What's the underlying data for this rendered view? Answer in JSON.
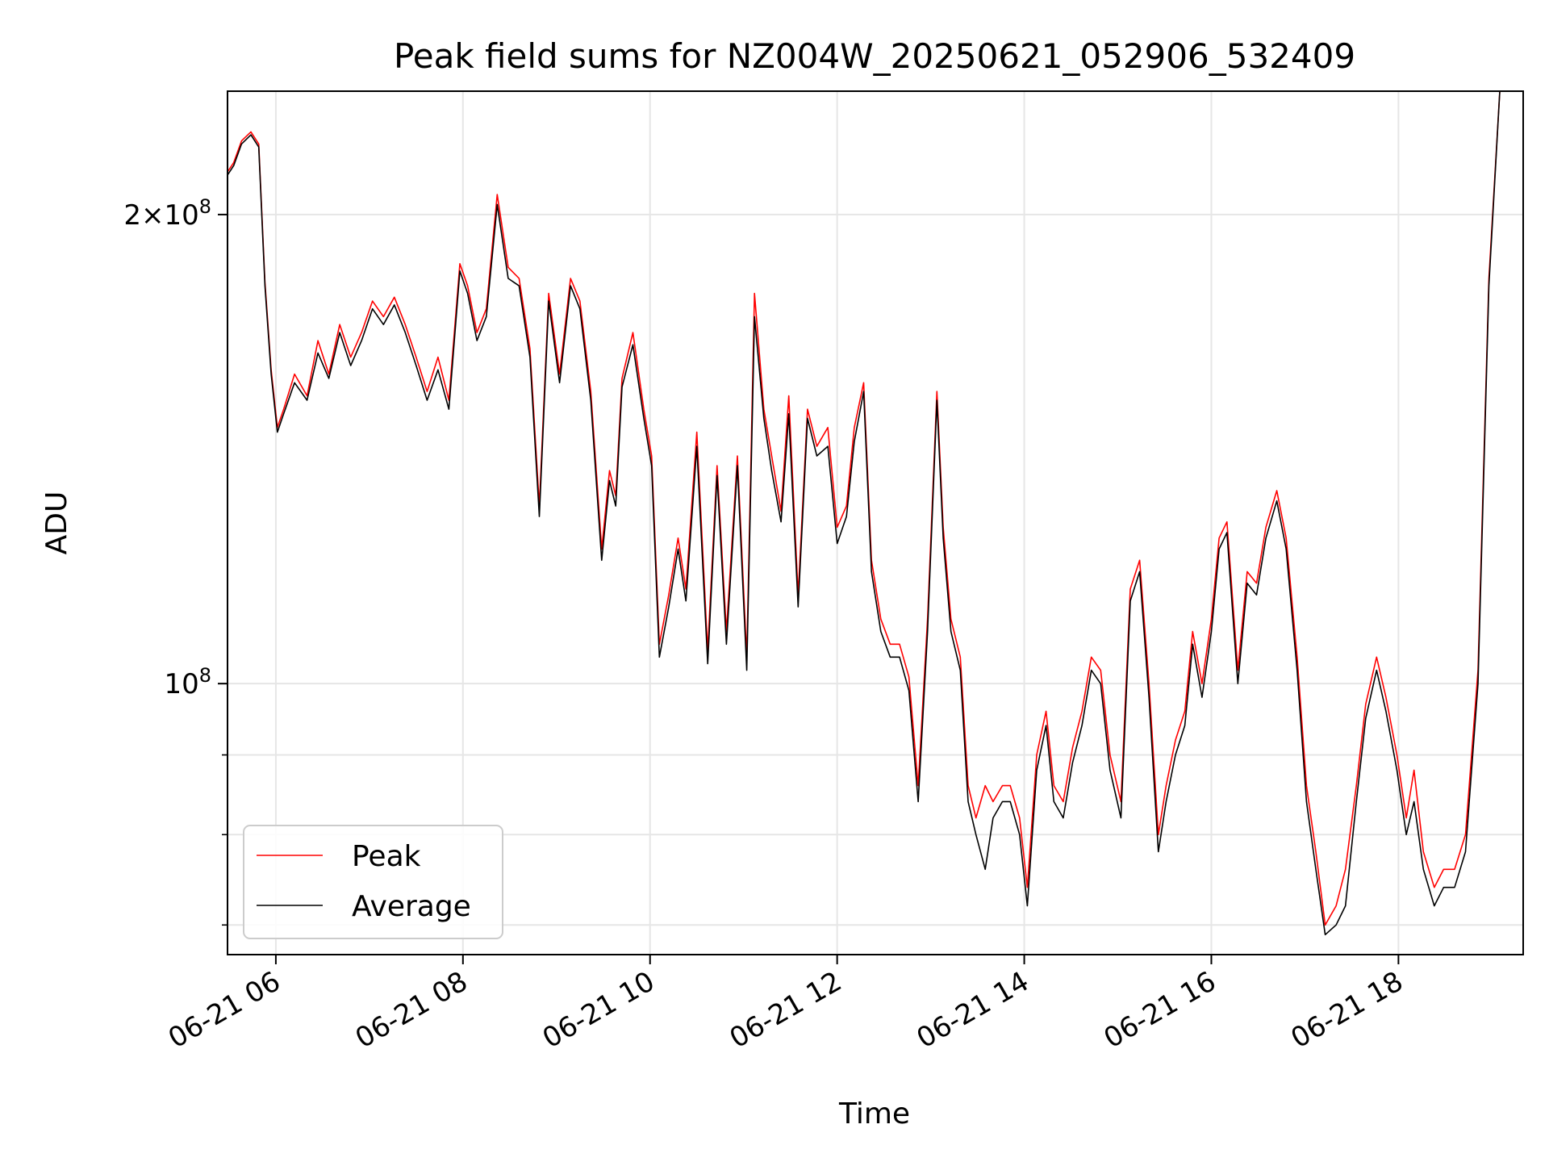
{
  "chart_data": {
    "type": "line",
    "title": "Peak field sums for NZ004W_20250621_052906_532409",
    "xlabel": "Time",
    "ylabel": "ADU",
    "y_scale": "log",
    "grid": true,
    "legend_position": "lower-left",
    "x_range": [
      "06-21 05:29",
      "06-21 19:20"
    ],
    "ylim": [
      67000000,
      240000000
    ],
    "x_tick_labels": [
      "06-21 06",
      "06-21 08",
      "06-21 10",
      "06-21 12",
      "06-21 14",
      "06-21 16",
      "06-21 18"
    ],
    "x_tick_values": [
      "06-21 06:00",
      "06-21 08:00",
      "06-21 10:00",
      "06-21 12:00",
      "06-21 14:00",
      "06-21 16:00",
      "06-21 18:00"
    ],
    "y_major_ticks": [
      {
        "value": 100000000,
        "base": "10",
        "exponent": "8",
        "mantissa": ""
      },
      {
        "value": 200000000,
        "base": "10",
        "exponent": "8",
        "mantissa": "2×"
      }
    ],
    "y_minor_ticks": [
      70000000,
      80000000,
      90000000
    ],
    "series": [
      {
        "name": "Peak",
        "color": "#ff0000"
      },
      {
        "name": "Average",
        "color": "#000000"
      }
    ],
    "x": [
      "05:29",
      "05:33",
      "05:38",
      "05:44",
      "05:49",
      "05:53",
      "05:57",
      "06:01",
      "06:05",
      "06:12",
      "06:20",
      "06:27",
      "06:34",
      "06:41",
      "06:48",
      "06:55",
      "07:02",
      "07:09",
      "07:16",
      "07:23",
      "07:30",
      "07:37",
      "07:44",
      "07:51",
      "07:58",
      "08:03",
      "08:09",
      "08:15",
      "08:22",
      "08:29",
      "08:36",
      "08:43",
      "08:49",
      "08:55",
      "09:02",
      "09:09",
      "09:15",
      "09:22",
      "09:29",
      "09:34",
      "09:38",
      "09:42",
      "09:49",
      "09:56",
      "10:01",
      "10:06",
      "10:12",
      "10:18",
      "10:23",
      "10:30",
      "10:37",
      "10:43",
      "10:49",
      "10:56",
      "11:02",
      "11:07",
      "11:13",
      "11:18",
      "11:24",
      "11:29",
      "11:35",
      "11:41",
      "11:47",
      "11:54",
      "12:00",
      "12:06",
      "12:11",
      "12:17",
      "12:22",
      "12:28",
      "12:34",
      "12:40",
      "12:46",
      "12:52",
      "12:58",
      "13:04",
      "13:08",
      "13:13",
      "13:19",
      "13:24",
      "13:29",
      "13:35",
      "13:40",
      "13:46",
      "13:51",
      "13:57",
      "14:02",
      "14:08",
      "14:14",
      "14:19",
      "14:25",
      "14:31",
      "14:37",
      "14:43",
      "14:49",
      "14:55",
      "15:02",
      "15:08",
      "15:14",
      "15:20",
      "15:26",
      "15:31",
      "15:37",
      "15:43",
      "15:48",
      "15:54",
      "16:00",
      "16:05",
      "16:10",
      "16:17",
      "16:23",
      "16:29",
      "16:35",
      "16:42",
      "16:48",
      "16:55",
      "17:01",
      "17:07",
      "17:13",
      "17:20",
      "17:26",
      "17:33",
      "17:39",
      "17:46",
      "17:52",
      "17:59",
      "18:05",
      "18:10",
      "18:16",
      "18:23",
      "18:29",
      "18:36",
      "18:43",
      "18:51",
      "18:58",
      "19:05",
      "19:12",
      "19:20"
    ],
    "average": [
      212,
      215,
      222,
      225,
      221,
      180,
      158,
      145,
      149,
      156,
      152,
      163,
      157,
      168,
      160,
      166,
      174,
      170,
      175,
      168,
      160,
      152,
      159,
      150,
      184,
      178,
      166,
      172,
      203,
      182,
      180,
      162,
      128,
      176,
      156,
      180,
      174,
      152,
      120,
      135,
      130,
      155,
      165,
      148,
      138,
      104,
      112,
      122,
      113,
      142,
      103,
      136,
      106,
      138,
      102,
      172,
      148,
      137,
      127,
      149,
      112,
      148,
      140,
      142,
      123,
      128,
      143,
      154,
      118,
      108,
      104,
      104,
      99,
      84,
      108,
      152,
      124,
      108,
      102,
      84,
      80,
      76,
      82,
      84,
      84,
      80,
      72,
      88,
      94,
      84,
      82,
      89,
      94,
      102,
      100,
      88,
      82,
      113,
      118,
      98,
      78,
      84,
      90,
      94,
      106,
      98,
      108,
      122,
      125,
      100,
      116,
      114,
      124,
      131,
      122,
      102,
      84,
      76,
      69,
      70,
      72,
      84,
      95,
      102,
      96,
      88,
      80,
      84,
      76,
      72,
      74,
      74,
      78,
      100,
      180,
      240
    ],
    "peak": [
      213,
      216,
      223,
      226,
      222,
      181,
      159,
      146,
      150,
      158,
      153,
      166,
      158,
      170,
      162,
      168,
      176,
      172,
      177,
      170,
      162,
      154,
      162,
      152,
      186,
      180,
      168,
      174,
      206,
      185,
      182,
      164,
      130,
      178,
      158,
      182,
      176,
      154,
      122,
      137,
      132,
      157,
      168,
      150,
      140,
      106,
      114,
      124,
      115,
      145,
      105,
      138,
      108,
      140,
      104,
      178,
      150,
      140,
      129,
      153,
      114,
      150,
      142,
      146,
      126,
      130,
      146,
      156,
      120,
      110,
      106,
      106,
      101,
      86,
      110,
      154,
      126,
      110,
      104,
      86,
      82,
      86,
      84,
      86,
      86,
      82,
      74,
      90,
      96,
      86,
      84,
      91,
      96,
      104,
      102,
      90,
      84,
      115,
      120,
      100,
      80,
      86,
      92,
      96,
      108,
      100,
      110,
      124,
      127,
      102,
      118,
      116,
      126,
      133,
      124,
      104,
      86,
      78,
      70,
      72,
      76,
      86,
      97,
      104,
      98,
      90,
      82,
      88,
      78,
      74,
      76,
      76,
      80,
      102,
      182,
      240
    ]
  }
}
